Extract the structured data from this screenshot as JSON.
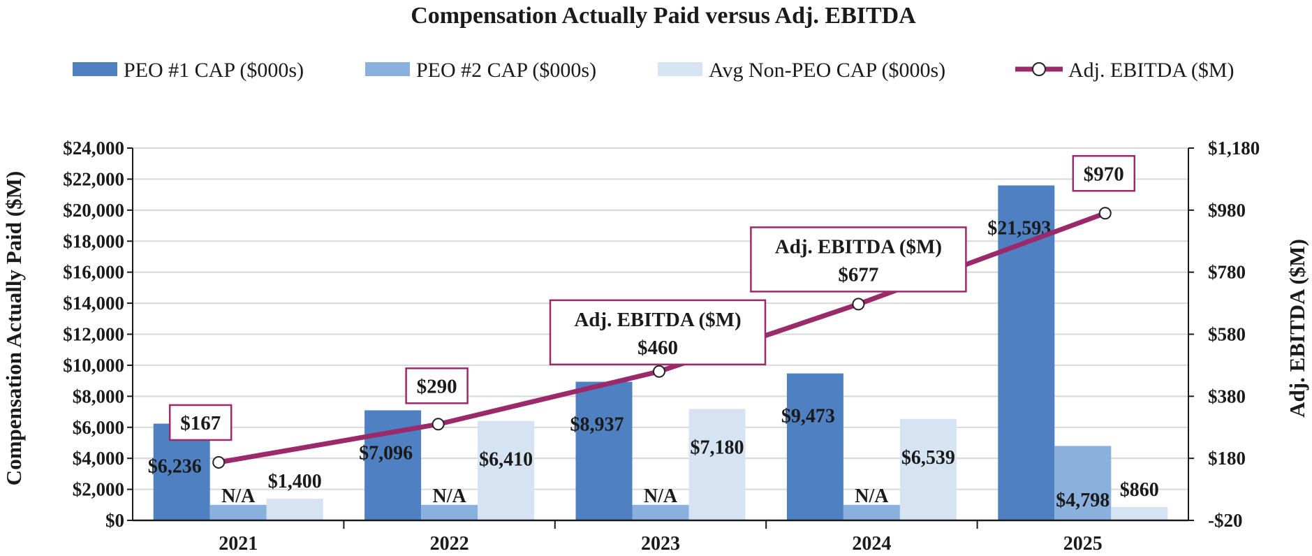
{
  "chart_data": {
    "type": "bar",
    "title": "Compensation Actually Paid versus Adj. EBITDA",
    "categories": [
      "2021",
      "2022",
      "2023",
      "2024",
      "2025"
    ],
    "series": [
      {
        "name": "PEO #1 CAP ($000s)",
        "color": "#4F81C2",
        "values": [
          6236,
          7096,
          8937,
          9473,
          21593
        ],
        "labels": [
          "$6,236",
          "$7,096",
          "$8,937",
          "$9,473",
          "$21,593"
        ]
      },
      {
        "name": "PEO #2 CAP ($000s)",
        "color": "#8AB0DD",
        "values": [
          null,
          null,
          null,
          null,
          4798
        ],
        "placeholder_value": 1000,
        "labels": [
          "N/A",
          "N/A",
          "N/A",
          "N/A",
          "$4,798"
        ]
      },
      {
        "name": "Avg Non-PEO CAP ($000s)",
        "color": "#D5E3F3",
        "values": [
          1400,
          6410,
          7180,
          6539,
          860
        ],
        "labels": [
          "$1,400",
          "$6,410",
          "$7,180",
          "$6,539",
          "$860"
        ]
      }
    ],
    "line_series": {
      "name": "Adj. EBITDA ($M)",
      "color": "#9B2A6B",
      "axis": "right",
      "values": [
        167,
        290,
        460,
        677,
        970
      ],
      "labels": [
        "$167",
        "$290",
        "$460",
        "$677",
        "$970"
      ],
      "callouts": [
        "",
        "",
        "Adj. EBITDA ($M)",
        "Adj. EBITDA ($M)",
        ""
      ]
    },
    "left_axis": {
      "label": "Compensation Actually Paid ($M)",
      "min": 0,
      "max": 24000,
      "ticks": [
        "$0",
        "$2,000",
        "$4,000",
        "$6,000",
        "$8,000",
        "$10,000",
        "$12,000",
        "$14,000",
        "$16,000",
        "$18,000",
        "$20,000",
        "$22,000",
        "$24,000"
      ]
    },
    "right_axis": {
      "label": "Adj. EBITDA ($M)",
      "min": -20,
      "max": 1180,
      "ticks": [
        "-$20",
        "$180",
        "$380",
        "$580",
        "$780",
        "$980",
        "$1,180"
      ]
    },
    "grid": true,
    "legend_position": "top"
  }
}
